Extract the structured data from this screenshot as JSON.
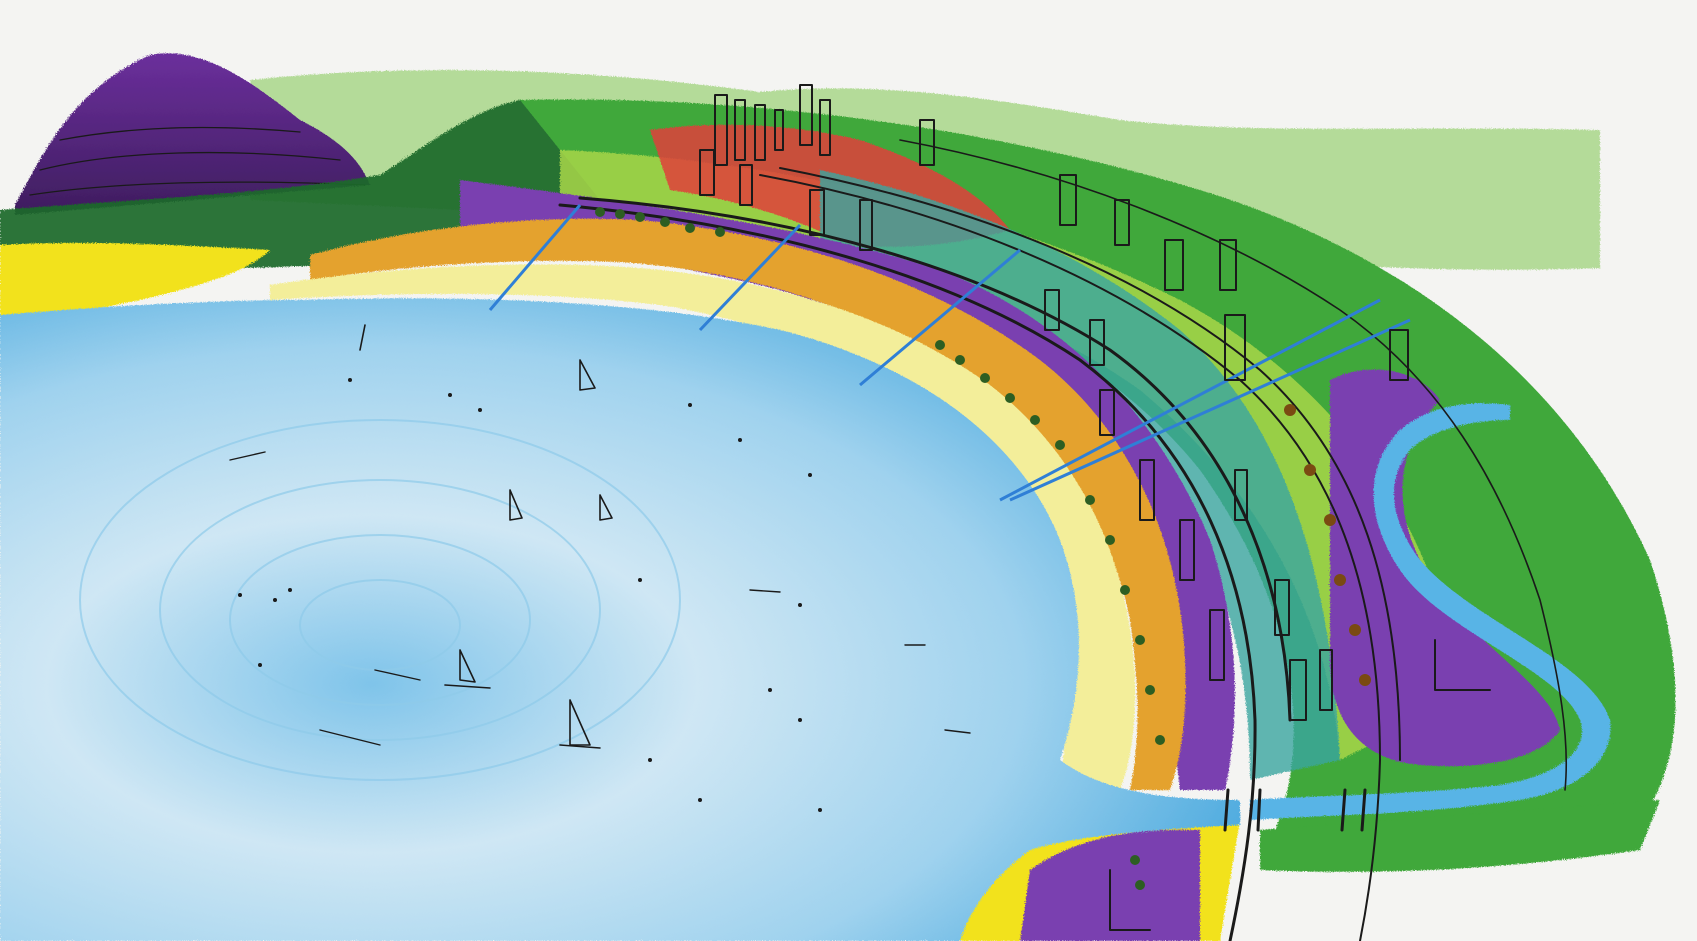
{
  "image": {
    "subject": "",
    "palette": {
      "paper": "#f4f4f2",
      "water_light": "#cfe7f4",
      "water_mid": "#8fcbea",
      "water_deep": "#3da5dc",
      "river": "#58b4e6",
      "sand": "#f3ee9a",
      "beach_yellow": "#f2e21c",
      "orange_strip": "#e4a22e",
      "purple": "#7a3fb0",
      "hill_purple": "#5a2a86",
      "teal": "#3aa6a0",
      "green": "#3fa83a",
      "dark_green": "#1f6b2a",
      "light_green": "#9fd37c",
      "red": "#e0403a",
      "ink": "#1a1a1a"
    }
  }
}
